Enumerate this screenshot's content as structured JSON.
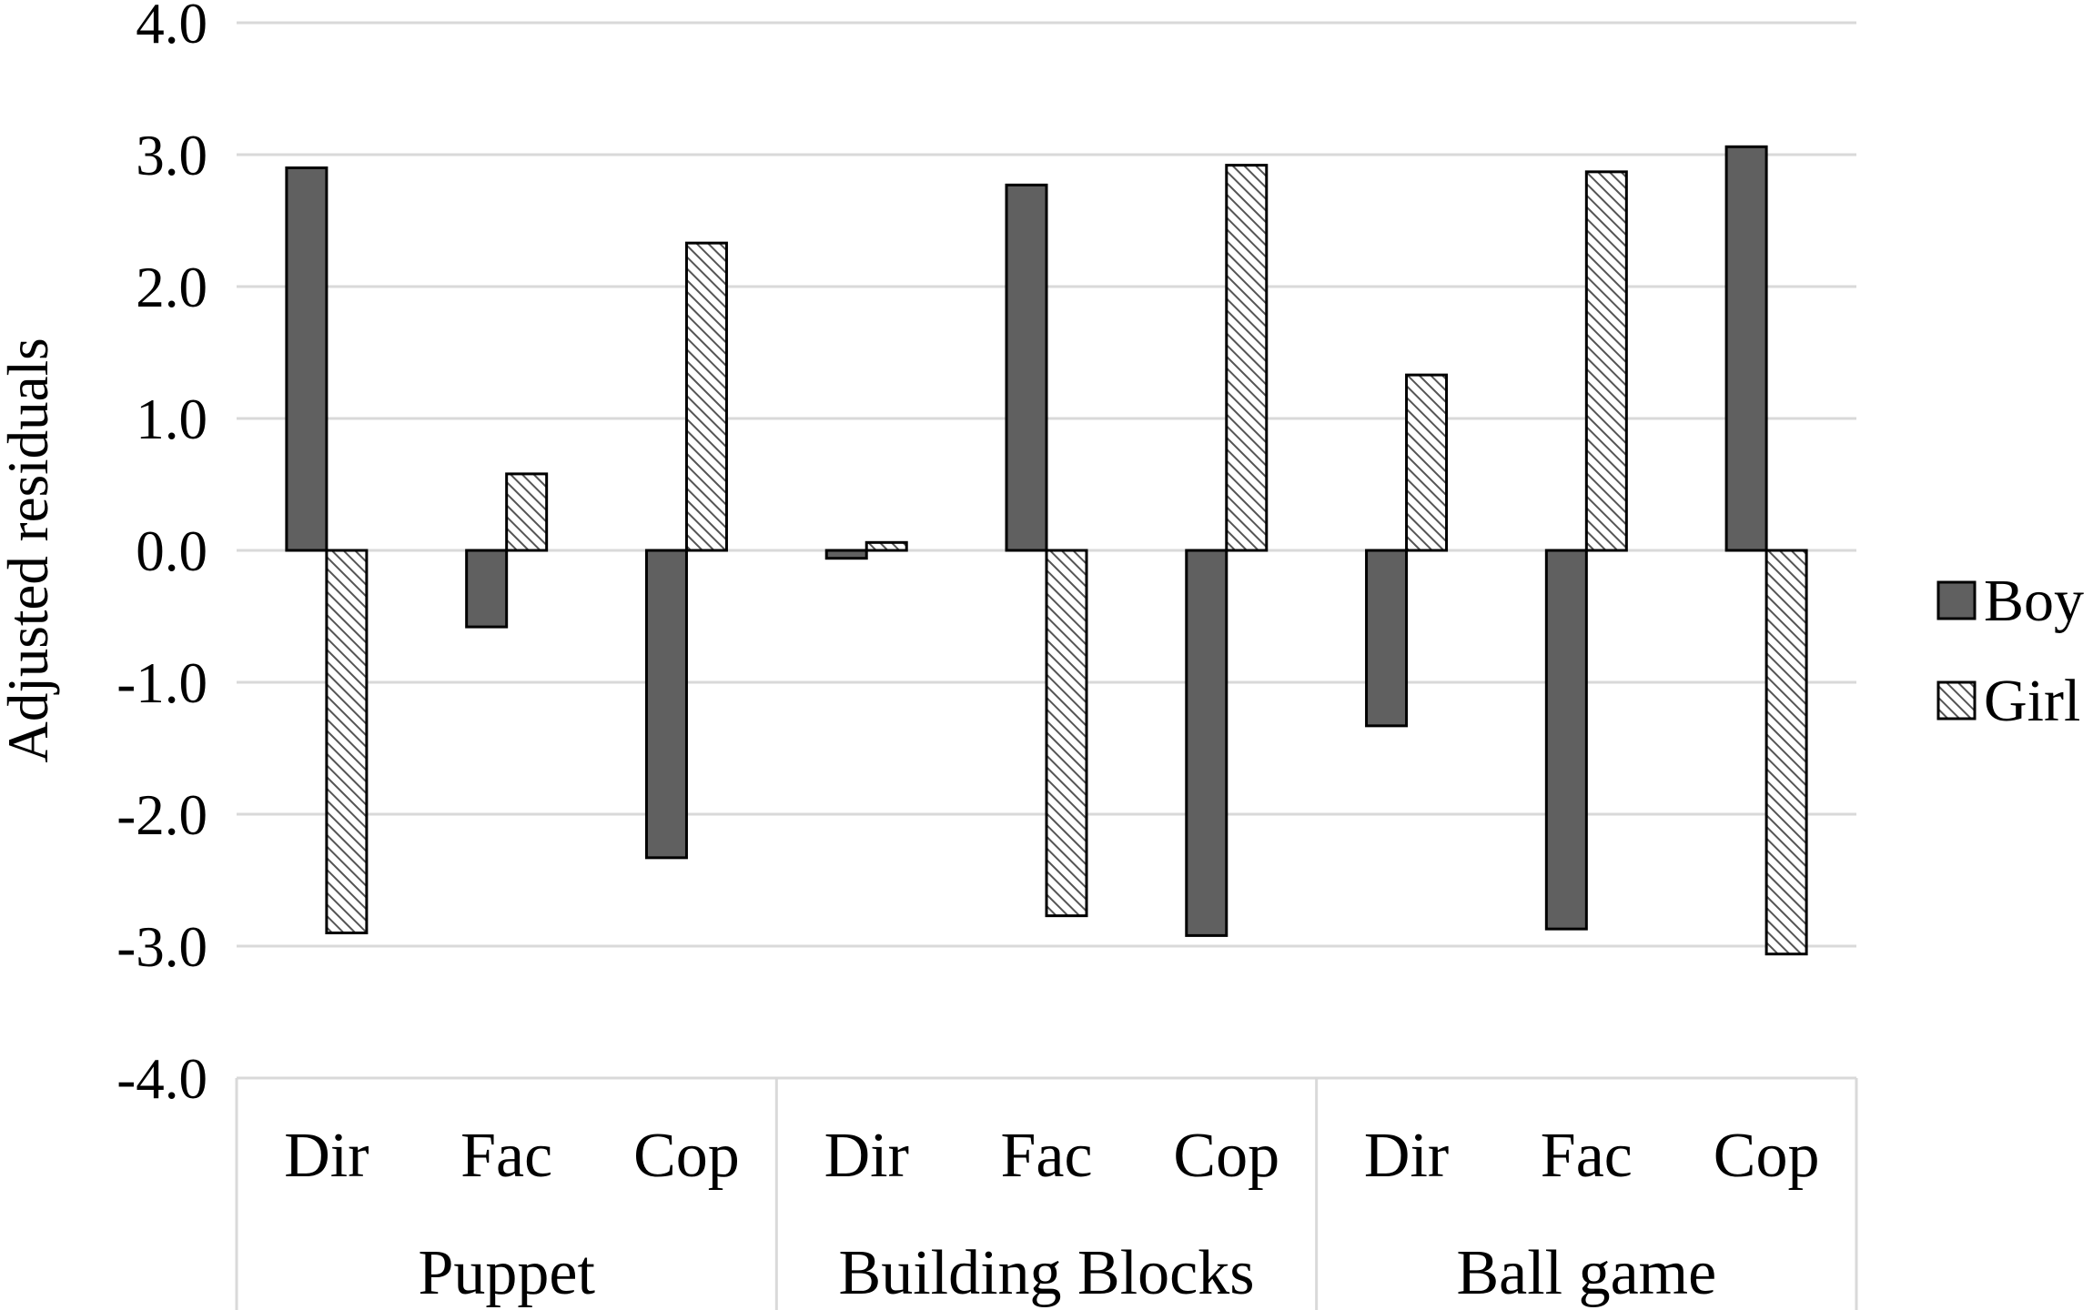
{
  "chart_data": {
    "type": "bar",
    "ylabel": "Adjusted residuals",
    "xlabel": "",
    "ylim": [
      -4.0,
      4.0
    ],
    "yticks": [
      "4.0",
      "3.0",
      "2.0",
      "1.0",
      "0.0",
      "-1.0",
      "-2.0",
      "-3.0",
      "-4.0"
    ],
    "grid": true,
    "legend_position": "right",
    "groups": [
      {
        "label": "Puppet",
        "categories": [
          "Dir",
          "Fac",
          "Cop"
        ]
      },
      {
        "label": "Building Blocks",
        "categories": [
          "Dir",
          "Fac",
          "Cop"
        ]
      },
      {
        "label": "Ball game",
        "categories": [
          "Dir",
          "Fac",
          "Cop"
        ]
      }
    ],
    "categories": [
      "Dir",
      "Fac",
      "Cop",
      "Dir",
      "Fac",
      "Cop",
      "Dir",
      "Fac",
      "Cop"
    ],
    "series": [
      {
        "name": "Boy",
        "color": "#606060",
        "pattern": "solid",
        "values": [
          2.9,
          -0.58,
          -2.33,
          -0.06,
          2.77,
          -2.92,
          -1.33,
          -2.87,
          3.06
        ]
      },
      {
        "name": "Girl",
        "color": "#ffffff",
        "pattern": "diagonal-hatch",
        "values": [
          -2.9,
          0.58,
          2.33,
          0.06,
          -2.77,
          2.92,
          1.33,
          2.87,
          -3.06
        ]
      }
    ]
  }
}
